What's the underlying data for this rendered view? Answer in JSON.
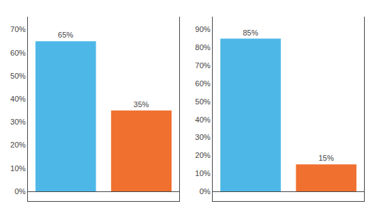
{
  "chart_data": [
    {
      "type": "bar",
      "categories": [
        null,
        null
      ],
      "values": [
        65,
        35
      ],
      "value_labels": [
        "65%",
        "35%"
      ],
      "colors": [
        "#4db8e8",
        "#f07030"
      ],
      "ylim": [
        -4.2,
        75.6
      ],
      "yticks": [
        {
          "value": 0,
          "label": "0%"
        },
        {
          "value": 10,
          "label": "10%"
        },
        {
          "value": 20,
          "label": "20%"
        },
        {
          "value": 30,
          "label": "30%"
        },
        {
          "value": 40,
          "label": "40%"
        },
        {
          "value": 50,
          "label": "50%"
        },
        {
          "value": 60,
          "label": "60%"
        },
        {
          "value": 70,
          "label": "70%"
        }
      ],
      "grid": false,
      "data_labels": true,
      "tick_labels": "y"
    },
    {
      "type": "bar",
      "categories": [
        null,
        null
      ],
      "values": [
        85,
        15
      ],
      "value_labels": [
        "85%",
        "15%"
      ],
      "colors": [
        "#4db8e8",
        "#f07030"
      ],
      "ylim": [
        -5.4,
        97.2
      ],
      "yticks": [
        {
          "value": 0,
          "label": "0%"
        },
        {
          "value": 10,
          "label": "10%"
        },
        {
          "value": 20,
          "label": "20%"
        },
        {
          "value": 30,
          "label": "30%"
        },
        {
          "value": 40,
          "label": "40%"
        },
        {
          "value": 50,
          "label": "50%"
        },
        {
          "value": 60,
          "label": "60%"
        },
        {
          "value": 70,
          "label": "70%"
        },
        {
          "value": 80,
          "label": "80%"
        },
        {
          "value": 90,
          "label": "90%"
        }
      ],
      "grid": false,
      "data_labels": true,
      "tick_labels": "y"
    }
  ]
}
